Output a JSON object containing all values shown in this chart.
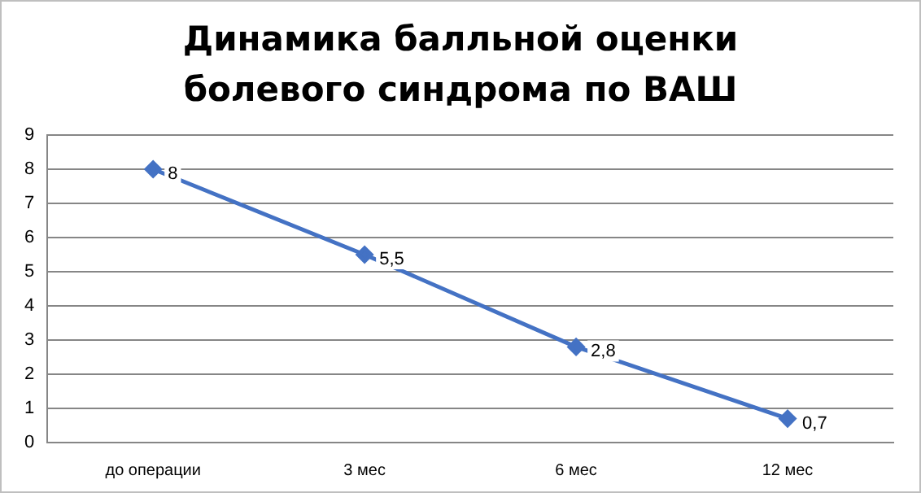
{
  "chart_data": {
    "type": "line",
    "title": "Динамика балльной оценки болевого синдрома по ВАШ",
    "categories": [
      "до операции",
      "3 мес",
      "6 мес",
      "12 мес"
    ],
    "series": [
      {
        "color": "#4472c4",
        "values": [
          8,
          5.5,
          2.8,
          0.7
        ],
        "value_labels": [
          "8",
          "5,5",
          "2,8",
          "0,7"
        ]
      }
    ],
    "ylim": [
      0,
      9
    ],
    "yticks": [
      0,
      1,
      2,
      3,
      4,
      5,
      6,
      7,
      8,
      9
    ],
    "grid": "y",
    "legend": false,
    "marker": "diamond",
    "line_style": "solid"
  }
}
